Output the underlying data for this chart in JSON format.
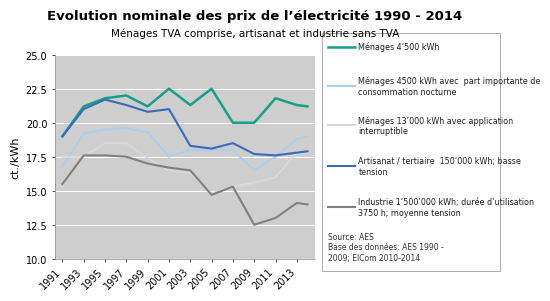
{
  "title": "Evolution nominale des prix de l’électricité 1990 - 2014",
  "subtitle": "Ménages TVA comprise, artisanat et industrie sans TVA",
  "ylabel": "ct./kWh",
  "ylim": [
    10.0,
    25.0
  ],
  "yticks": [
    10.0,
    12.5,
    15.0,
    17.5,
    20.0,
    22.5,
    25.0
  ],
  "source_text": "Source: AES\nBase des données: AES 1990 -\n2009; ElCom 2010-2014",
  "x_years": [
    1991,
    1993,
    1995,
    1997,
    1999,
    2001,
    2003,
    2005,
    2007,
    2009,
    2011,
    2013,
    2014
  ],
  "x_ticks": [
    1991,
    1993,
    1995,
    1997,
    1999,
    2001,
    2003,
    2005,
    2007,
    2009,
    2011,
    2013
  ],
  "xlim": [
    1990.3,
    2014.7
  ],
  "series": [
    {
      "label": "Ménages 4’500 kWh",
      "color": "#1a9e8c",
      "linewidth": 1.8,
      "values": [
        19.0,
        21.2,
        21.8,
        22.0,
        21.2,
        22.5,
        21.3,
        22.5,
        20.0,
        20.0,
        21.8,
        21.3,
        21.2
      ]
    },
    {
      "label": "Ménages 4500 kWh avec  part importante de\nconsommation nocturne",
      "color": "#aacfed",
      "linewidth": 1.5,
      "values": [
        16.8,
        19.2,
        19.5,
        19.6,
        19.3,
        17.5,
        18.0,
        18.0,
        18.0,
        16.5,
        17.5,
        18.8,
        19.0
      ]
    },
    {
      "label": "Ménages 13’000 kWh avec application\ninterruptible",
      "color": "#d8d8d8",
      "linewidth": 1.5,
      "values": [
        17.5,
        17.5,
        18.5,
        18.5,
        17.4,
        16.5,
        16.3,
        14.8,
        15.3,
        15.6,
        16.0,
        17.8,
        17.8
      ]
    },
    {
      "label": "Artisanat / tertiaire  150’000 kWh; basse\ntension",
      "color": "#3a6bba",
      "linewidth": 1.5,
      "values": [
        19.0,
        21.0,
        21.7,
        21.3,
        20.8,
        21.0,
        18.3,
        18.1,
        18.5,
        17.7,
        17.6,
        17.8,
        17.9
      ]
    },
    {
      "label": "Industrie 1’500’000 kWh; durée d’utilisation\n3750 h; moyenne tension",
      "color": "#808080",
      "linewidth": 1.5,
      "values": [
        15.5,
        17.6,
        17.6,
        17.5,
        17.0,
        16.7,
        16.5,
        14.7,
        15.3,
        12.5,
        13.0,
        14.1,
        14.0
      ]
    }
  ],
  "plot_area_color": "#cecece",
  "fig_background": "#ffffff",
  "legend_box_color": "#ffffff",
  "legend_box_edge": "#aaaaaa",
  "grid_color": "#ffffff",
  "title_fontsize": 9.5,
  "subtitle_fontsize": 7.5,
  "tick_fontsize": 7,
  "ylabel_fontsize": 8,
  "legend_fontsize": 5.8,
  "source_fontsize": 5.5
}
